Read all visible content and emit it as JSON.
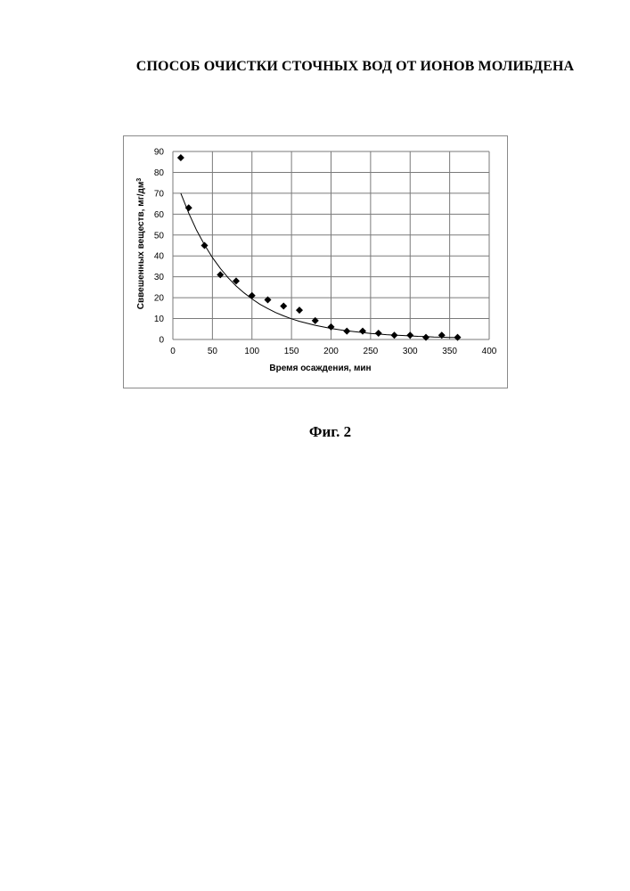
{
  "page": {
    "title": "СПОСОБ ОЧИСТКИ СТОЧНЫХ ВОД ОТ ИОНОВ МОЛИБДЕНА",
    "caption": "Фиг. 2"
  },
  "chart_data": {
    "type": "scatter",
    "title": "",
    "xlabel": "Время осаждения, мин",
    "ylabel": "Сввешенных веществ, мг/дм",
    "ylabel_superscript": "3",
    "xlim": [
      0,
      400
    ],
    "ylim": [
      0,
      90
    ],
    "x_ticks": [
      0,
      50,
      100,
      150,
      200,
      250,
      300,
      350,
      400
    ],
    "y_ticks": [
      0,
      10,
      20,
      30,
      40,
      50,
      60,
      70,
      80,
      90
    ],
    "grid": true,
    "legend": "none",
    "series": [
      {
        "x": [
          10,
          20,
          40,
          60,
          80,
          100,
          120,
          140,
          160,
          180,
          200,
          220,
          240,
          260,
          280,
          300,
          320,
          340,
          360
        ],
        "y": [
          87,
          63,
          45,
          31,
          28,
          21,
          19,
          16,
          14,
          9,
          6,
          4,
          4,
          3,
          2,
          2,
          1,
          2,
          1
        ],
        "marker": "diamond",
        "color": "#000000"
      }
    ],
    "trendline": {
      "type": "exponential",
      "x": [
        10,
        20,
        30,
        40,
        50,
        60,
        70,
        80,
        90,
        100,
        110,
        120,
        130,
        140,
        150,
        160,
        170,
        180,
        190,
        200,
        210,
        220,
        230,
        240,
        250,
        260,
        270,
        280,
        290,
        300,
        310,
        320,
        330,
        340,
        350,
        360
      ],
      "y": [
        70,
        60.5,
        52.3,
        45.3,
        39.2,
        34,
        29.5,
        25.6,
        22.3,
        19.4,
        16.9,
        14.8,
        12.9,
        11.3,
        9.9,
        8.7,
        7.7,
        6.8,
        6.0,
        5.3,
        4.7,
        4.2,
        3.7,
        3.3,
        2.9,
        2.6,
        2.3,
        2.1,
        1.9,
        1.7,
        1.5,
        1.4,
        1.2,
        1.1,
        1.0,
        0.9
      ],
      "color": "#000000"
    }
  }
}
